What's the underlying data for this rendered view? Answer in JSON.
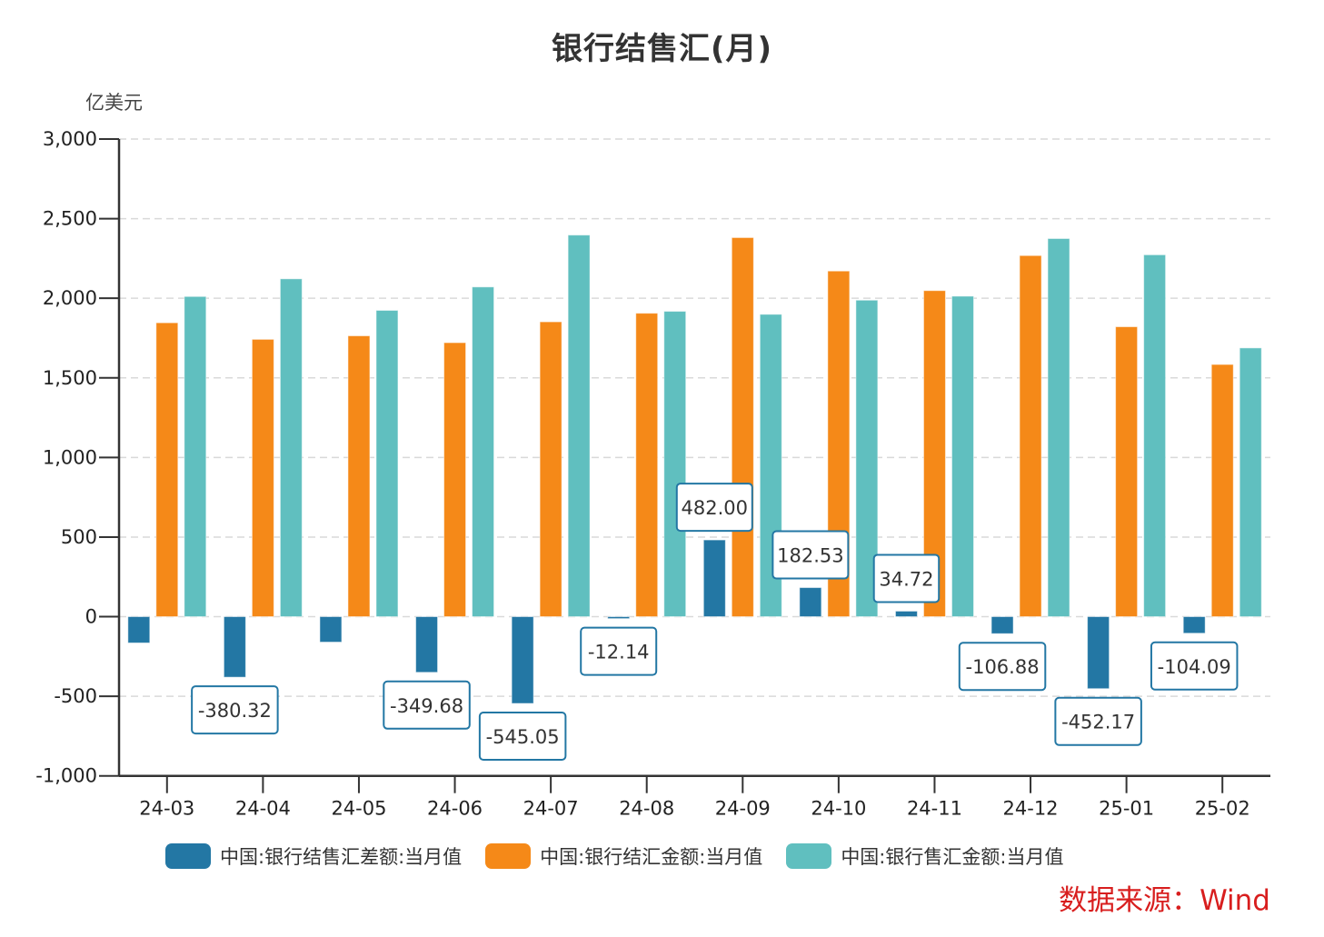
{
  "chart_data": {
    "type": "bar",
    "title": "银行结售汇(月)",
    "ylabel": "亿美元",
    "xlabel": "",
    "ylim": [
      -1000,
      3000
    ],
    "yticks": [
      3000,
      2500,
      2000,
      1500,
      1000,
      500,
      0,
      -500,
      -1000
    ],
    "ytick_labels": [
      "3,000",
      "2,500",
      "2,000",
      "1,500",
      "1,000",
      "500",
      "0",
      "-500",
      "-1,000"
    ],
    "grid": true,
    "legend_position": "bottom",
    "categories": [
      "24-03",
      "24-04",
      "24-05",
      "24-06",
      "24-07",
      "24-08",
      "24-09",
      "24-10",
      "24-11",
      "24-12",
      "25-01",
      "25-02"
    ],
    "series": [
      {
        "name": "中国:银行结售汇差额:当月值",
        "color": "#2377a4",
        "values": [
          -165,
          -380.32,
          -160,
          -349.68,
          -545.05,
          -12.14,
          482.0,
          182.53,
          34.72,
          -106.88,
          -452.17,
          -104.09
        ],
        "data_labels": [
          null,
          "-380.32",
          null,
          "-349.68",
          "-545.05",
          "-12.14",
          "482.00",
          "182.53",
          "34.72",
          "-106.88",
          "-452.17",
          "-104.09"
        ]
      },
      {
        "name": "中国:银行结汇金额:当月值",
        "color": "#f58918",
        "values": [
          1846,
          1742,
          1764,
          1721,
          1852,
          1906,
          2381,
          2171,
          2048,
          2268,
          1821,
          1584
        ]
      },
      {
        "name": "中国:银行售汇金额:当月值",
        "color": "#60bfbf",
        "values": [
          2011,
          2122,
          1924,
          2071,
          2397,
          1918,
          1899,
          1988,
          2013,
          2375,
          2273,
          1688
        ]
      }
    ]
  },
  "source": "数据来源：Wind",
  "colors": {
    "axis": "#333333",
    "grid": "#d9d9d9",
    "label_border": "#2377a4",
    "source_text": "#d81e1e"
  }
}
